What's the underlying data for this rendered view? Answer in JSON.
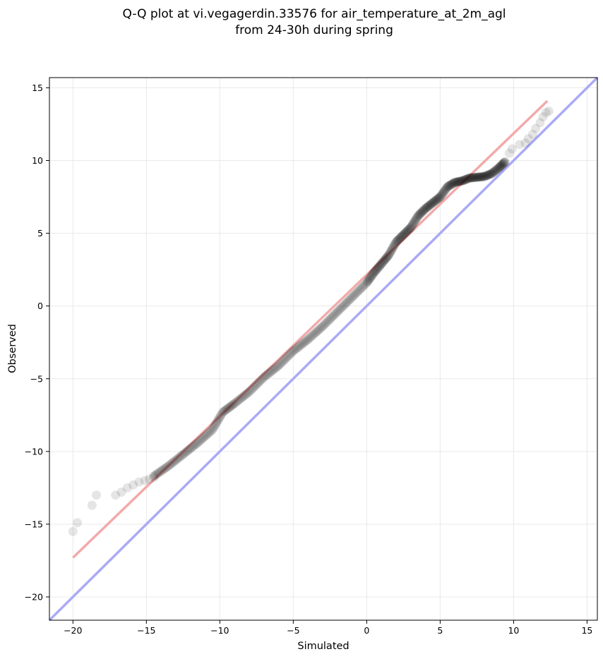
{
  "chart_data": {
    "type": "scatter",
    "title_line1": "Q-Q plot at vi.vegagerdin.33576 for air_temperature_at_2m_agl",
    "title_line2": "from 24-30h during spring",
    "xlabel": "Simulated",
    "ylabel": "Observed",
    "xlim": [
      -21.6,
      15.7
    ],
    "ylim": [
      -21.6,
      15.7
    ],
    "xticks": [
      -20,
      -15,
      -10,
      -5,
      0,
      5,
      10,
      15
    ],
    "yticks": [
      -20,
      -15,
      -10,
      -5,
      0,
      5,
      10,
      15
    ],
    "grid": true,
    "reference_line": {
      "name": "1:1",
      "color": "#aaaaf5",
      "from": [
        -21.6,
        -21.6
      ],
      "to": [
        15.7,
        15.7
      ]
    },
    "fit_line": {
      "color": "#f2aaaa",
      "from": [
        -20.0,
        -17.3
      ],
      "to": [
        12.3,
        14.1
      ]
    },
    "tail_points": [
      [
        -20.0,
        -15.5
      ],
      [
        -19.7,
        -14.9
      ],
      [
        -18.7,
        -13.7
      ],
      [
        -18.4,
        -13.0
      ],
      [
        -17.1,
        -13.0
      ],
      [
        -16.7,
        -12.8
      ],
      [
        -16.3,
        -12.5
      ],
      [
        -15.9,
        -12.3
      ],
      [
        -15.5,
        -12.1
      ],
      [
        -15.1,
        -12.0
      ],
      [
        -14.8,
        -11.9
      ],
      [
        -14.5,
        -11.8
      ],
      [
        9.4,
        9.9
      ],
      [
        9.7,
        10.5
      ],
      [
        9.9,
        10.8
      ],
      [
        10.4,
        11.1
      ],
      [
        10.8,
        11.2
      ],
      [
        11.0,
        11.5
      ],
      [
        11.3,
        11.8
      ],
      [
        11.5,
        12.2
      ],
      [
        11.8,
        12.6
      ],
      [
        12.0,
        13.0
      ],
      [
        12.2,
        13.3
      ],
      [
        12.4,
        13.4
      ]
    ],
    "dense_curve": [
      [
        -14.5,
        -11.7
      ],
      [
        -13.5,
        -11.0
      ],
      [
        -12.5,
        -10.2
      ],
      [
        -11.5,
        -9.4
      ],
      [
        -10.5,
        -8.5
      ],
      [
        -9.8,
        -7.3
      ],
      [
        -9.0,
        -6.7
      ],
      [
        -8.0,
        -5.9
      ],
      [
        -7.0,
        -4.9
      ],
      [
        -6.0,
        -4.1
      ],
      [
        -5.0,
        -3.1
      ],
      [
        -4.0,
        -2.3
      ],
      [
        -3.0,
        -1.4
      ],
      [
        -2.0,
        -0.4
      ],
      [
        -1.0,
        0.6
      ],
      [
        0.0,
        1.6
      ],
      [
        0.5,
        2.3
      ],
      [
        1.0,
        2.9
      ],
      [
        1.5,
        3.5
      ],
      [
        2.0,
        4.4
      ],
      [
        2.5,
        4.9
      ],
      [
        3.0,
        5.4
      ],
      [
        3.5,
        6.2
      ],
      [
        4.0,
        6.7
      ],
      [
        4.5,
        7.1
      ],
      [
        5.0,
        7.5
      ],
      [
        5.5,
        8.2
      ],
      [
        6.0,
        8.5
      ],
      [
        6.5,
        8.6
      ],
      [
        7.0,
        8.8
      ],
      [
        7.5,
        8.85
      ],
      [
        8.0,
        8.9
      ],
      [
        8.5,
        9.1
      ],
      [
        9.0,
        9.5
      ],
      [
        9.4,
        9.9
      ]
    ]
  }
}
